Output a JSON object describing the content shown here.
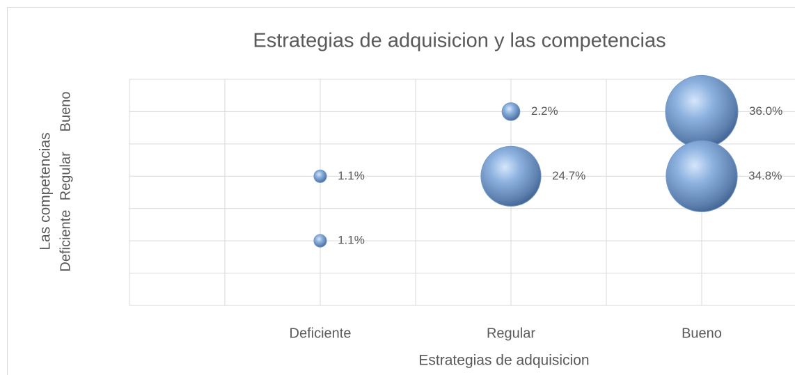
{
  "chart_data": {
    "type": "bubble",
    "title": "Estrategias de adquisicion y las competencias",
    "x_label": "Estrategias de adquisicion",
    "y_label": "Las competencias",
    "xlim": [
      0,
      3.5
    ],
    "ylim": [
      0,
      3.5
    ],
    "xticks": [
      {
        "value": 1,
        "label": "Deficiente"
      },
      {
        "value": 2,
        "label": "Regular"
      },
      {
        "value": 3,
        "label": "Bueno"
      }
    ],
    "yticks": [
      {
        "value": 1,
        "label": "Deficiente"
      },
      {
        "value": 2,
        "label": "Regular"
      },
      {
        "value": 3,
        "label": "Bueno"
      }
    ],
    "xgrid": [
      0.5,
      1,
      1.5,
      2,
      2.5,
      3,
      3.5
    ],
    "ygrid": [
      0,
      0.5,
      1,
      1.5,
      2,
      2.5,
      3,
      3.5
    ],
    "grid": true,
    "series": [
      {
        "color": "#6f97cb",
        "x": [
          1,
          1,
          2,
          2,
          3,
          3
        ],
        "values": [
          2,
          1,
          3,
          2,
          3,
          2
        ],
        "sizes": [
          1.1,
          1.1,
          2.2,
          24.7,
          36.0,
          34.8
        ],
        "value_labels": [
          "1.1%",
          "1.1%",
          "2.2%",
          "24.7%",
          "36.0%",
          "34.8%"
        ]
      }
    ]
  }
}
